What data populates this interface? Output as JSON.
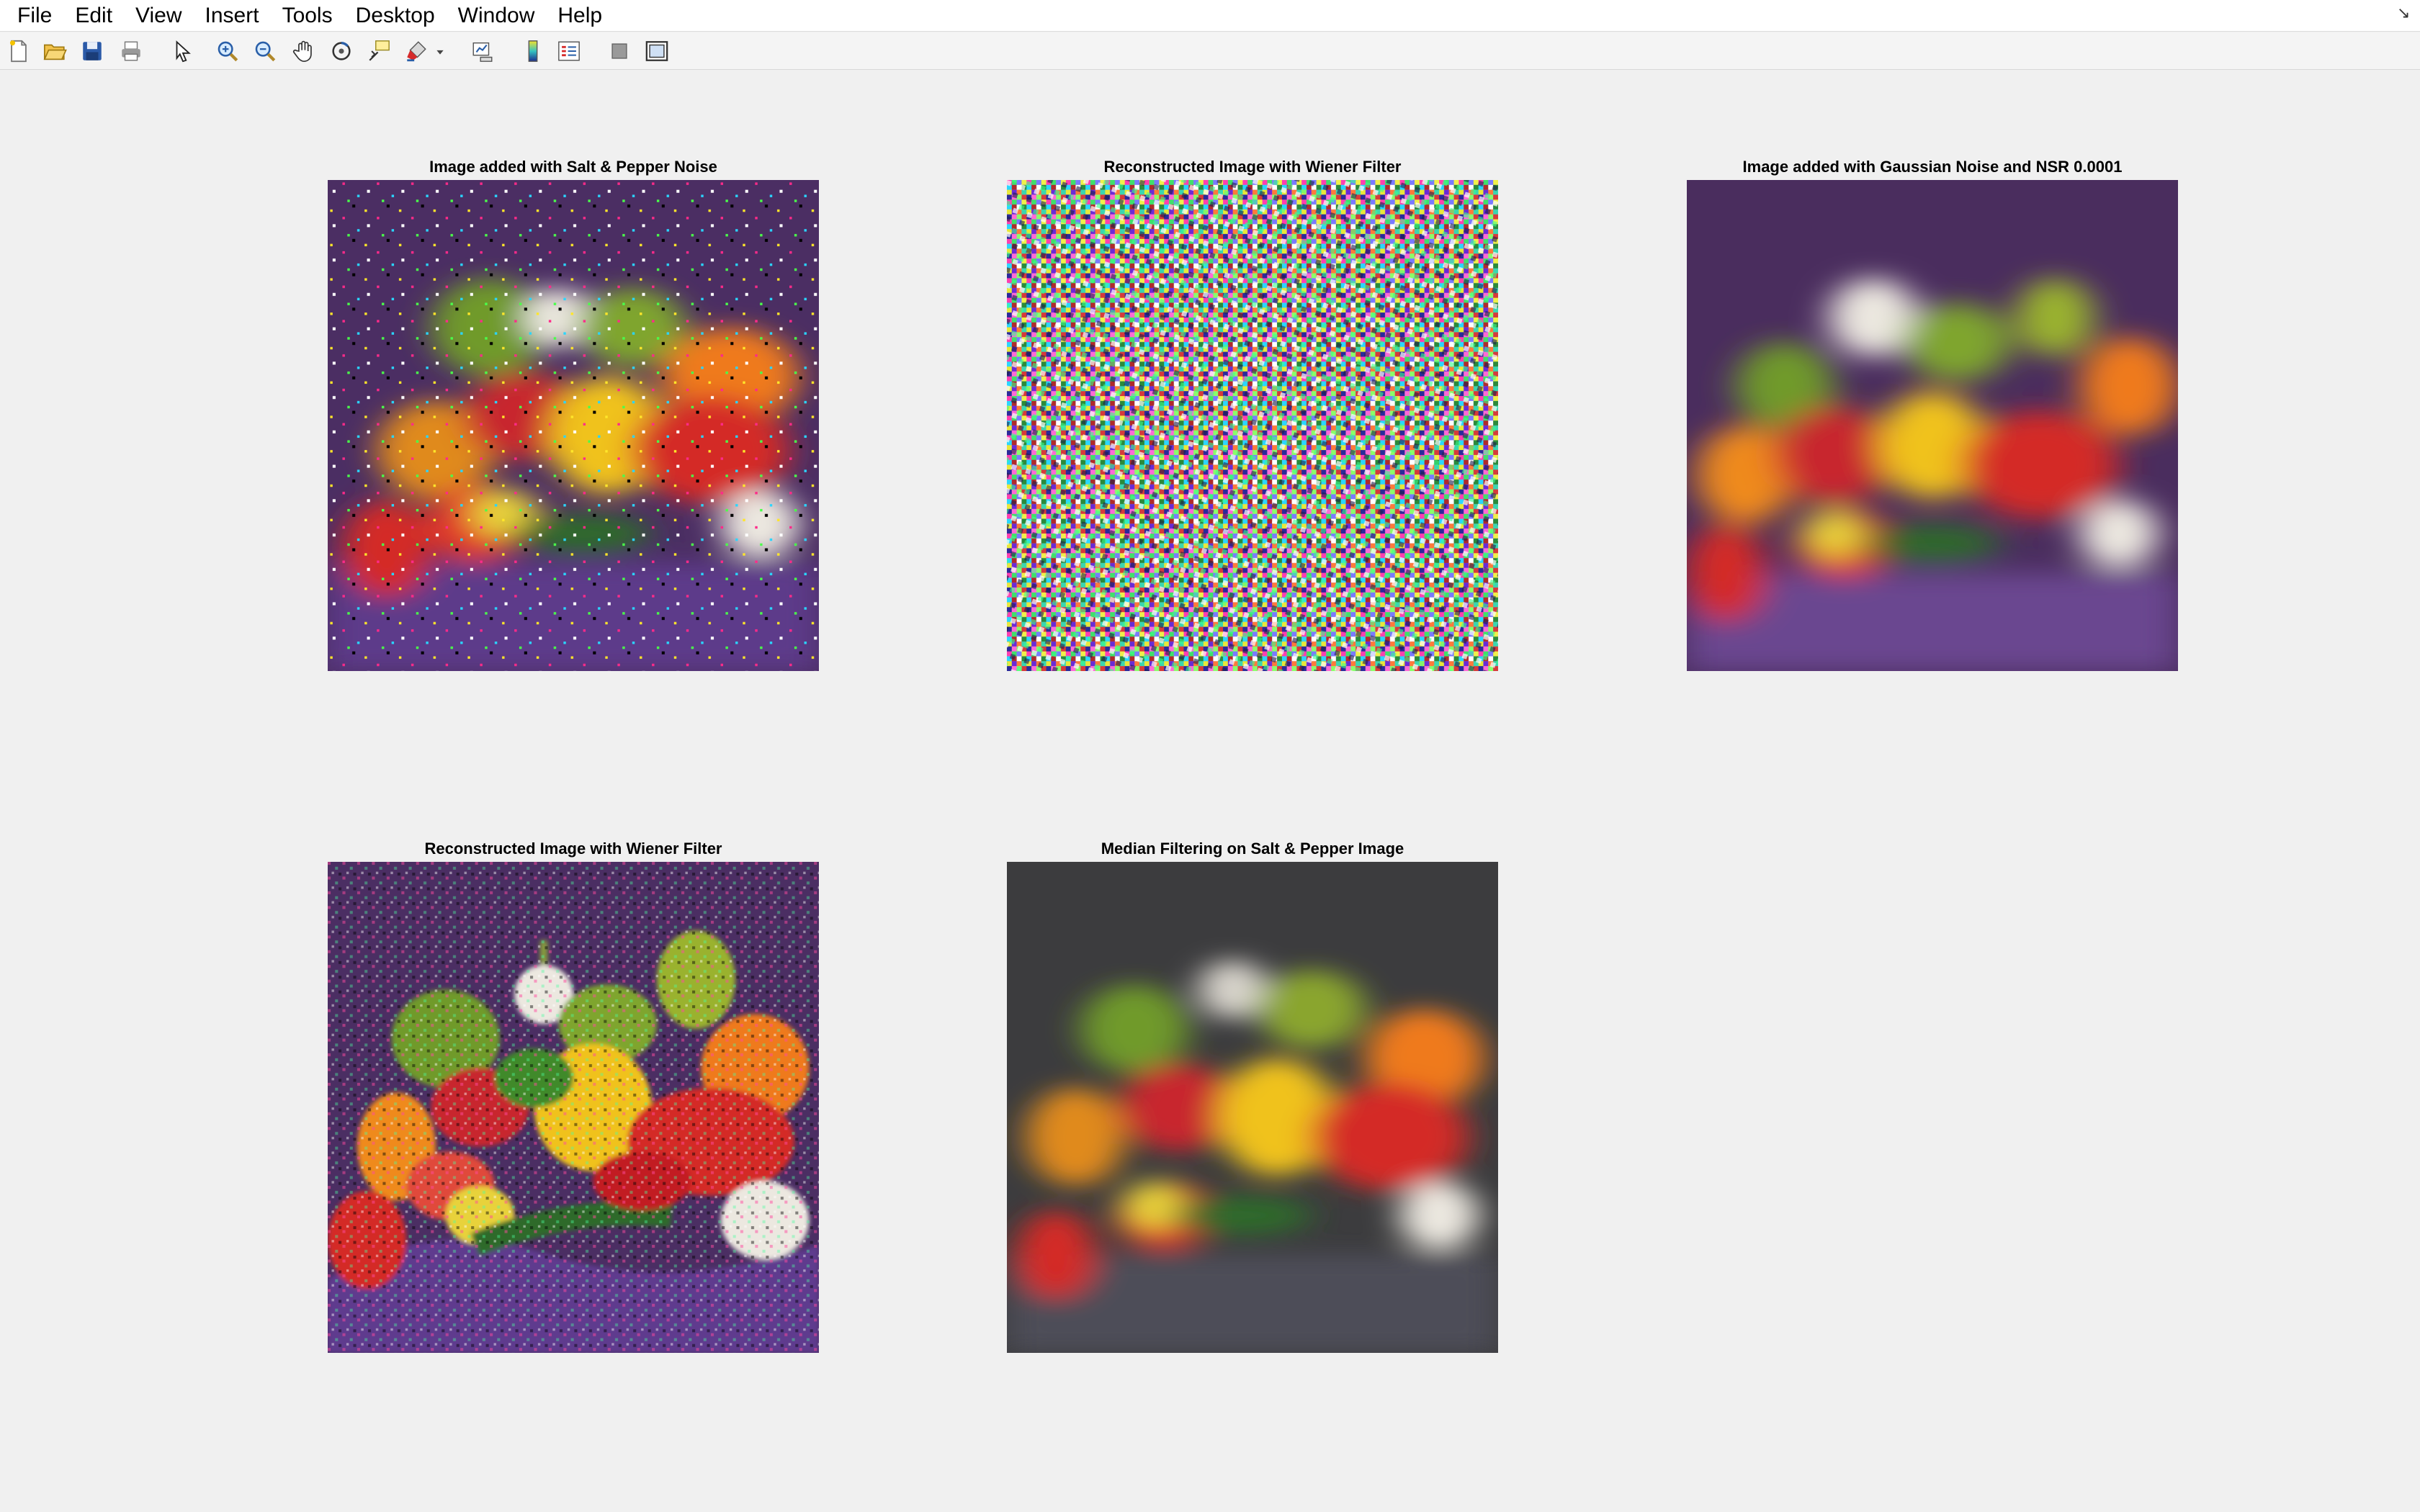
{
  "menu": [
    "File",
    "Edit",
    "View",
    "Insert",
    "Tools",
    "Desktop",
    "Window",
    "Help"
  ],
  "toolbar": [
    "new-figure-icon",
    "open-file-icon",
    "save-icon",
    "print-icon",
    "edit-plot-arrow-icon",
    "zoom-in-icon",
    "zoom-out-icon",
    "pan-hand-icon",
    "rotate-3d-icon",
    "data-cursor-icon",
    "brush-icon",
    "brush-dropdown-icon",
    "link-plot-icon",
    "colorbar-icon",
    "legend-icon",
    "hide-plot-tools-icon",
    "show-plot-tools-icon"
  ],
  "figure": {
    "panels": [
      {
        "title": "Image added with Salt & Pepper Noise",
        "content": "blurred peppers image with salt and pepper noise"
      },
      {
        "title": "Reconstructed Image with Wiener Filter",
        "content": "multicolored random noise"
      },
      {
        "title": "Image added with Gaussian Noise and NSR 0.0001",
        "content": "motion blurred peppers image"
      },
      {
        "title": "Reconstructed Image with Wiener Filter",
        "content": "sharp noisy peppers image"
      },
      {
        "title": "Median Filtering on Salt & Pepper Image",
        "content": "blurred desaturated peppers image"
      }
    ]
  },
  "colors": {
    "figure_background": "#f0f0f0",
    "cloth_purple": "#4b2e63",
    "pepper_red": "#d42a26",
    "pepper_yellow": "#f0c21e",
    "pepper_green": "#6f9a2a",
    "pepper_orange": "#ef7a1e",
    "garlic_white": "#ece8e0"
  }
}
